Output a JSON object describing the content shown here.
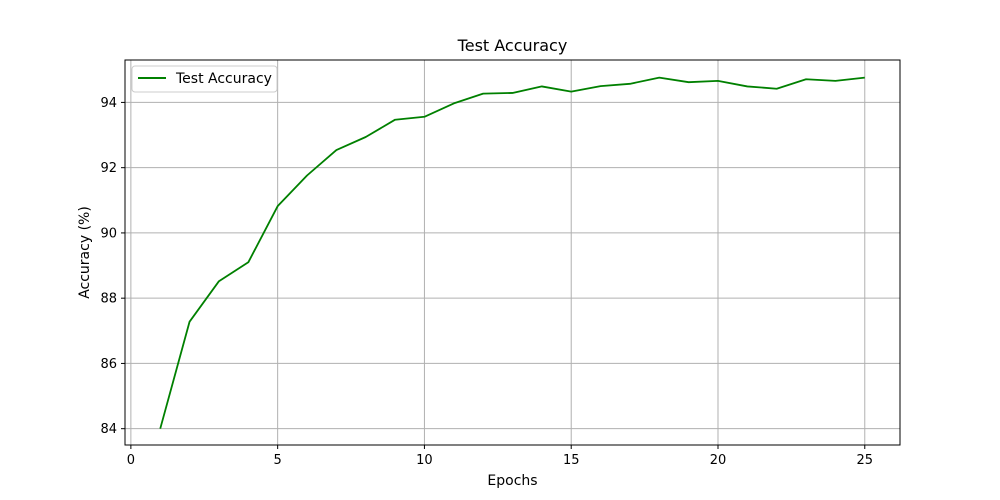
{
  "chart_data": {
    "type": "line",
    "title": "Test Accuracy",
    "xlabel": "Epochs",
    "ylabel": "Accuracy (%)",
    "xlim": [
      -0.2,
      26.2
    ],
    "ylim": [
      83.5,
      95.3
    ],
    "xticks": [
      0,
      5,
      10,
      15,
      20,
      25
    ],
    "yticks": [
      84,
      86,
      88,
      90,
      92,
      94
    ],
    "grid": true,
    "legend_position": "top-left",
    "series": [
      {
        "name": "Test Accuracy",
        "color": "#008000",
        "x": [
          1,
          2,
          3,
          4,
          5,
          6,
          7,
          8,
          9,
          10,
          11,
          12,
          13,
          14,
          15,
          16,
          17,
          18,
          19,
          20,
          21,
          22,
          23,
          24,
          25
        ],
        "y": [
          84.0,
          87.28,
          88.52,
          89.1,
          90.82,
          91.76,
          92.54,
          92.94,
          93.47,
          93.56,
          93.97,
          94.27,
          94.29,
          94.49,
          94.33,
          94.5,
          94.57,
          94.76,
          94.62,
          94.66,
          94.49,
          94.42,
          94.71,
          94.66,
          94.76
        ]
      }
    ]
  }
}
